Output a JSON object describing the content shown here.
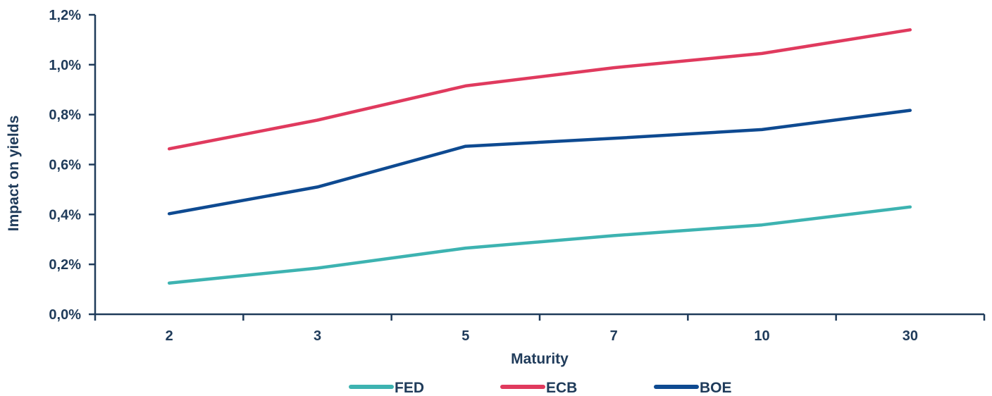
{
  "chart_data": {
    "type": "line",
    "categories": [
      "2",
      "3",
      "5",
      "7",
      "10",
      "30"
    ],
    "xlabel": "Maturity",
    "ylabel": "Impact on yields",
    "ylim": [
      0,
      1.2
    ],
    "y_ticks": [
      0,
      0.2,
      0.4,
      0.6,
      0.8,
      1.0,
      1.2
    ],
    "y_tick_labels": [
      "0,0%",
      "0,2%",
      "0,4%",
      "0,6%",
      "0,8%",
      "1,0%",
      "1,2%"
    ],
    "grid": false,
    "legend_position": "bottom",
    "series": [
      {
        "name": "FED",
        "color": "#3db3b1",
        "values": [
          0.125,
          0.185,
          0.265,
          0.315,
          0.358,
          0.43
        ]
      },
      {
        "name": "ECB",
        "color": "#e03a5e",
        "values": [
          0.663,
          0.778,
          0.915,
          0.988,
          1.045,
          1.14
        ]
      },
      {
        "name": "BOE",
        "color": "#0e4a91",
        "values": [
          0.403,
          0.51,
          0.673,
          0.705,
          0.74,
          0.817
        ]
      }
    ]
  }
}
